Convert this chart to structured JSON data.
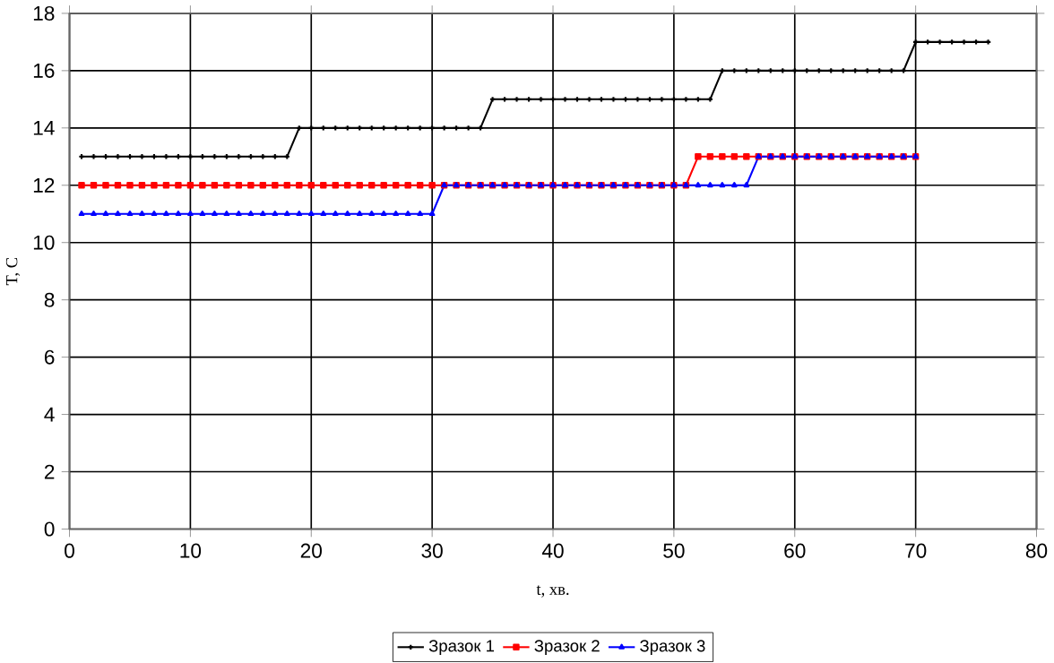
{
  "chart_data": {
    "type": "line",
    "xlabel": "t, хв.",
    "ylabel": "T, C",
    "x": [
      1,
      2,
      3,
      4,
      5,
      6,
      7,
      8,
      9,
      10,
      11,
      12,
      13,
      14,
      15,
      16,
      17,
      18,
      19,
      20,
      21,
      22,
      23,
      24,
      25,
      26,
      27,
      28,
      29,
      30,
      31,
      32,
      33,
      34,
      35,
      36,
      37,
      38,
      39,
      40,
      41,
      42,
      43,
      44,
      45,
      46,
      47,
      48,
      49,
      50,
      51,
      52,
      53,
      54,
      55,
      56,
      57,
      58,
      59,
      60,
      61,
      62,
      63,
      64,
      65,
      66,
      67,
      68,
      69,
      70,
      71,
      72,
      73,
      74,
      75,
      76
    ],
    "series": [
      {
        "name": "Зразок 1",
        "color": "#000000",
        "marker": "cross",
        "values": [
          13,
          13,
          13,
          13,
          13,
          13,
          13,
          13,
          13,
          13,
          13,
          13,
          13,
          13,
          13,
          13,
          13,
          13,
          14,
          14,
          14,
          14,
          14,
          14,
          14,
          14,
          14,
          14,
          14,
          14,
          14,
          14,
          14,
          14,
          15,
          15,
          15,
          15,
          15,
          15,
          15,
          15,
          15,
          15,
          15,
          15,
          15,
          15,
          15,
          15,
          15,
          15,
          15,
          16,
          16,
          16,
          16,
          16,
          16,
          16,
          16,
          16,
          16,
          16,
          16,
          16,
          16,
          16,
          16,
          17,
          17,
          17,
          17,
          17,
          17,
          17
        ]
      },
      {
        "name": "Зразок 2",
        "color": "#ff0000",
        "marker": "square",
        "values": [
          12,
          12,
          12,
          12,
          12,
          12,
          12,
          12,
          12,
          12,
          12,
          12,
          12,
          12,
          12,
          12,
          12,
          12,
          12,
          12,
          12,
          12,
          12,
          12,
          12,
          12,
          12,
          12,
          12,
          12,
          12,
          12,
          12,
          12,
          12,
          12,
          12,
          12,
          12,
          12,
          12,
          12,
          12,
          12,
          12,
          12,
          12,
          12,
          12,
          12,
          12,
          13,
          13,
          13,
          13,
          13,
          13,
          13,
          13,
          13,
          13,
          13,
          13,
          13,
          13,
          13,
          13,
          13,
          13,
          13,
          null,
          null,
          null,
          null,
          null,
          null
        ]
      },
      {
        "name": "Зразок 3",
        "color": "#0000ff",
        "marker": "triangle",
        "values": [
          11,
          11,
          11,
          11,
          11,
          11,
          11,
          11,
          11,
          11,
          11,
          11,
          11,
          11,
          11,
          11,
          11,
          11,
          11,
          11,
          11,
          11,
          11,
          11,
          11,
          11,
          11,
          11,
          11,
          11,
          12,
          12,
          12,
          12,
          12,
          12,
          12,
          12,
          12,
          12,
          12,
          12,
          12,
          12,
          12,
          12,
          12,
          12,
          12,
          12,
          12,
          12,
          12,
          12,
          12,
          12,
          13,
          13,
          13,
          13,
          13,
          13,
          13,
          13,
          13,
          13,
          13,
          13,
          13,
          13,
          null,
          null,
          null,
          null,
          null,
          null
        ]
      }
    ],
    "xlim": [
      0,
      80
    ],
    "xticks": [
      0,
      10,
      20,
      30,
      40,
      50,
      60,
      70,
      80
    ],
    "ylim": [
      0,
      18
    ],
    "yticks": [
      0,
      2,
      4,
      6,
      8,
      10,
      12,
      14,
      16,
      18
    ],
    "grid": true,
    "legend": "bottom",
    "line_style": "solid"
  }
}
